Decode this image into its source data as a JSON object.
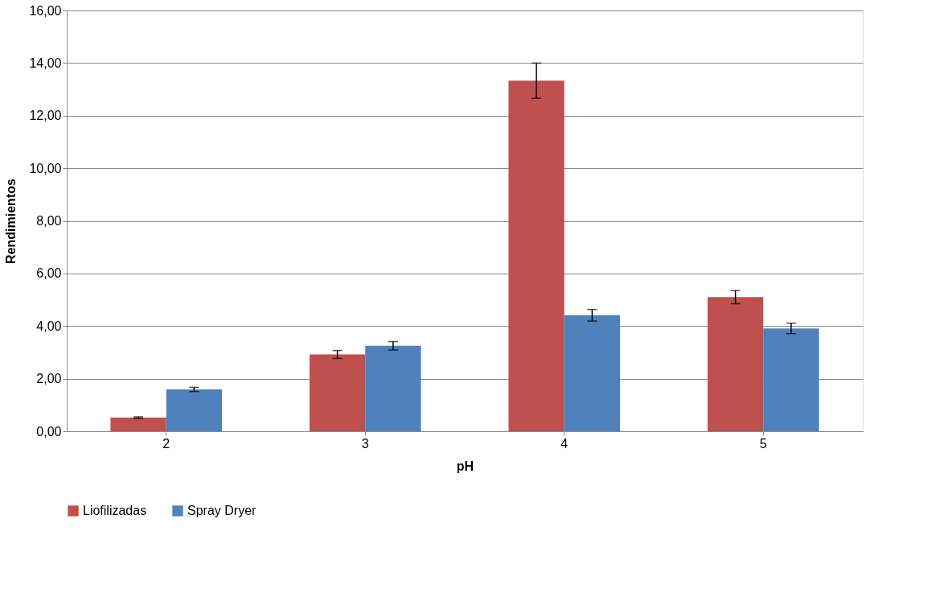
{
  "chart_data": {
    "type": "bar",
    "xlabel": "pH",
    "ylabel": "Rendimientos",
    "categories": [
      "2",
      "3",
      "4",
      "5"
    ],
    "series": [
      {
        "name": "Liofilizadas",
        "color": "#c0504d",
        "values": [
          0.52,
          2.92,
          13.33,
          5.1
        ],
        "errors": [
          0.03,
          0.15,
          0.67,
          0.25
        ]
      },
      {
        "name": "Spray Dryer",
        "color": "#4f81bd",
        "values": [
          1.59,
          3.25,
          4.41,
          3.91
        ],
        "errors": [
          0.08,
          0.16,
          0.22,
          0.2
        ]
      }
    ],
    "ylim": [
      0,
      16
    ],
    "yticks": [
      {
        "value": 0,
        "label": "0,00"
      },
      {
        "value": 2,
        "label": "2,00"
      },
      {
        "value": 4,
        "label": "4,00"
      },
      {
        "value": 6,
        "label": "6,00"
      },
      {
        "value": 8,
        "label": "8,00"
      },
      {
        "value": 10,
        "label": "10,00"
      },
      {
        "value": 12,
        "label": "12,00"
      },
      {
        "value": 14,
        "label": "14,00"
      },
      {
        "value": 16,
        "label": "16,00"
      }
    ],
    "grid": "y",
    "legend": "bottom"
  }
}
